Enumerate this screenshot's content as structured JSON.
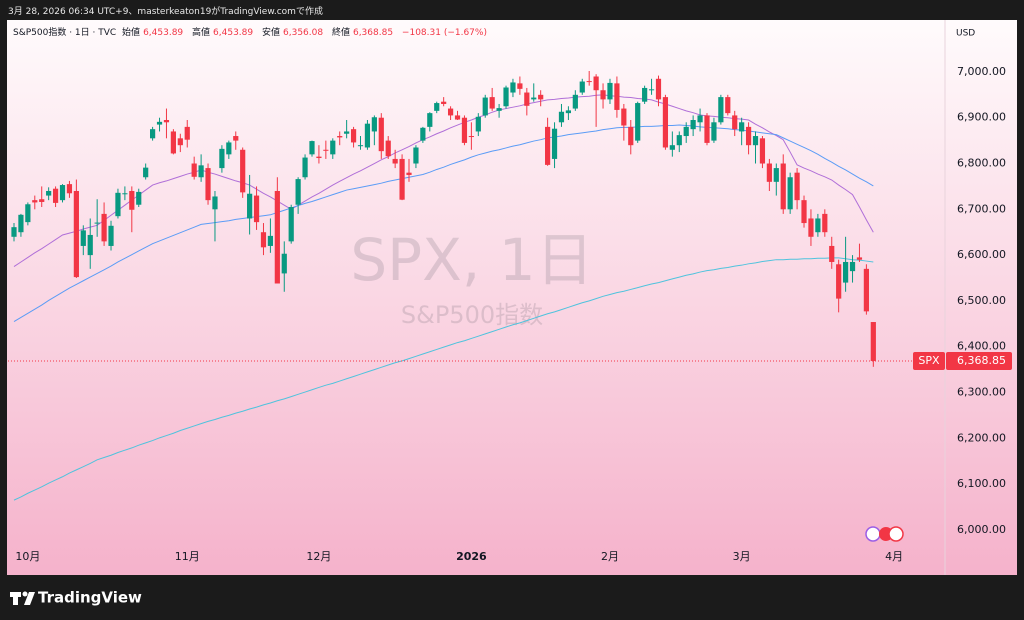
{
  "header": {
    "created": "3月 28, 2026 06:34 UTC+9、masterkeaton19がTradingView.comで作成"
  },
  "footer": {
    "brand": "TradingView"
  },
  "chart_data": {
    "type": "candlestick",
    "legend": {
      "symbol": "S&P500指数 · 1日 · TVC",
      "fields": [
        {
          "name": "始値",
          "text": "6,453.89"
        },
        {
          "name": "高値",
          "text": "6,453.89"
        },
        {
          "name": "安値",
          "text": "6,356.08"
        },
        {
          "name": "終値",
          "text": "6,368.85"
        }
      ],
      "change": "−108.31 (−1.67%)"
    },
    "watermark": "SPX, 1日",
    "watermark_sub": "S&P500指数",
    "currency": "USD",
    "last_price": {
      "symbol": "SPX",
      "value": 6368.85,
      "label": "6,368.85"
    },
    "up_color": "#089981",
    "down_color": "#f23645",
    "grid": false,
    "ylim": [
      5967,
      7109
    ],
    "yticks": [
      {
        "value": 6000,
        "label": "6,000.00"
      },
      {
        "value": 6100,
        "label": "6,100.00"
      },
      {
        "value": 6200,
        "label": "6,200.00"
      },
      {
        "value": 6300,
        "label": "6,300.00"
      },
      {
        "value": 6400,
        "label": "6,400.00"
      },
      {
        "value": 6500,
        "label": "6,500.00"
      },
      {
        "value": 6600,
        "label": "6,600.00"
      },
      {
        "value": 6700,
        "label": "6,700.00"
      },
      {
        "value": 6800,
        "label": "6,800.00"
      },
      {
        "value": 6900,
        "label": "6,900.00"
      },
      {
        "value": 7000,
        "label": "7,000.00"
      }
    ],
    "categories": [
      null,
      null,
      "10月",
      null,
      null,
      null,
      null,
      null,
      null,
      null,
      null,
      null,
      null,
      null,
      null,
      null,
      null,
      null,
      null,
      null,
      null,
      null,
      null,
      null,
      null,
      "11月",
      null,
      null,
      null,
      null,
      null,
      null,
      null,
      null,
      null,
      null,
      null,
      null,
      null,
      null,
      null,
      null,
      null,
      null,
      "12月",
      null,
      null,
      null,
      null,
      null,
      null,
      null,
      null,
      null,
      null,
      null,
      null,
      null,
      null,
      null,
      null,
      null,
      null,
      null,
      null,
      null,
      "2026",
      null,
      null,
      null,
      null,
      null,
      null,
      null,
      null,
      null,
      null,
      null,
      null,
      null,
      null,
      null,
      null,
      null,
      null,
      null,
      "2月",
      null,
      null,
      null,
      null,
      null,
      null,
      null,
      null,
      null,
      null,
      null,
      null,
      null,
      null,
      null,
      null,
      null,
      null,
      "3月",
      null,
      null,
      null,
      null,
      null,
      null,
      null,
      null,
      null,
      null,
      null,
      null,
      null,
      null,
      null,
      null,
      null,
      null,
      null,
      null,
      null,
      "4月"
    ],
    "open": [
      6640,
      6650,
      6672,
      6720,
      6722,
      6730,
      6745,
      6720,
      6755,
      6740,
      6620,
      6600,
      6670,
      6690,
      6620,
      6685,
      6735,
      6740,
      6710,
      6770,
      6855,
      6885,
      6895,
      6870,
      6855,
      6880,
      6800,
      6770,
      6790,
      6700,
      6790,
      6820,
      6860,
      6830,
      6680,
      6730,
      6650,
      6620,
      6740,
      6560,
      6630,
      6710,
      6770,
      6820,
      6815,
      6830,
      6820,
      6860,
      6865,
      6875,
      6840,
      6835,
      6870,
      6900,
      6850,
      6810,
      6810,
      6780,
      6800,
      6850,
      6880,
      6915,
      6935,
      6920,
      6905,
      6900,
      6860,
      6870,
      6905,
      6945,
      6915,
      6925,
      6955,
      6975,
      6955,
      6940,
      6950,
      6880,
      6810,
      6890,
      6910,
      6920,
      6955,
      6980,
      6990,
      6960,
      6940,
      6975,
      6920,
      6880,
      6850,
      6935,
      6960,
      6985,
      6945,
      6830,
      6840,
      6860,
      6875,
      6890,
      6905,
      6850,
      6890,
      6945,
      6905,
      6870,
      6880,
      6840,
      6855,
      6800,
      6760,
      6800,
      6700,
      6780,
      6720,
      6680,
      6650,
      6690,
      6620,
      6580,
      6540,
      6565,
      6595,
      6570,
      6453.89,
      null,
      null,
      null
    ],
    "high": [
      6670,
      6690,
      6715,
      6730,
      6750,
      6748,
      6750,
      6755,
      6762,
      6765,
      6665,
      6680,
      6722,
      6715,
      6675,
      6745,
      6750,
      6750,
      6745,
      6800,
      6880,
      6900,
      6920,
      6875,
      6865,
      6895,
      6815,
      6820,
      6800,
      6740,
      6840,
      6850,
      6870,
      6835,
      6775,
      6750,
      6670,
      6680,
      6770,
      6630,
      6710,
      6770,
      6820,
      6850,
      6840,
      6850,
      6855,
      6870,
      6895,
      6880,
      6860,
      6895,
      6905,
      6910,
      6860,
      6830,
      6820,
      6810,
      6840,
      6880,
      6912,
      6935,
      6945,
      6925,
      6915,
      6905,
      6890,
      6910,
      6950,
      6965,
      6930,
      6970,
      6985,
      6990,
      6965,
      6975,
      6960,
      6900,
      6890,
      6930,
      6925,
      6960,
      6985,
      7002,
      6995,
      6975,
      6985,
      6990,
      6930,
      6895,
      6935,
      6970,
      6985,
      6992,
      6950,
      6870,
      6870,
      6890,
      6905,
      6920,
      6910,
      6900,
      6950,
      6950,
      6915,
      6900,
      6890,
      6870,
      6860,
      6810,
      6800,
      6820,
      6780,
      6790,
      6730,
      6700,
      6690,
      6700,
      6640,
      6590,
      6640,
      6600,
      6625,
      6580,
      6453.89,
      null,
      null,
      null
    ],
    "low": [
      6630,
      6640,
      6665,
      6700,
      6705,
      6720,
      6705,
      6715,
      6725,
      6550,
      6600,
      6570,
      6640,
      6620,
      6610,
      6680,
      6720,
      6650,
      6705,
      6765,
      6850,
      6870,
      6855,
      6820,
      6825,
      6835,
      6765,
      6760,
      6710,
      6630,
      6780,
      6810,
      6830,
      6725,
      6645,
      6655,
      6600,
      6605,
      6538,
      6520,
      6625,
      6690,
      6765,
      6815,
      6800,
      6810,
      6810,
      6840,
      6855,
      6835,
      6830,
      6830,
      6840,
      6810,
      6810,
      6790,
      6720,
      6760,
      6790,
      6845,
      6870,
      6910,
      6925,
      6895,
      6895,
      6840,
      6830,
      6860,
      6900,
      6915,
      6900,
      6920,
      6945,
      6950,
      6905,
      6935,
      6925,
      6795,
      6790,
      6880,
      6895,
      6915,
      6950,
      6970,
      6880,
      6920,
      6930,
      6900,
      6850,
      6820,
      6845,
      6930,
      6950,
      6925,
      6830,
      6815,
      6825,
      6845,
      6860,
      6870,
      6840,
      6845,
      6885,
      6905,
      6860,
      6840,
      6820,
      6800,
      6790,
      6740,
      6730,
      6690,
      6690,
      6700,
      6660,
      6620,
      6640,
      6640,
      6570,
      6475,
      6520,
      6540,
      6585,
      6470,
      6356.08,
      null,
      null,
      null
    ],
    "close": [
      6661,
      6688,
      6711,
      6715,
      6716,
      6740,
      6714,
      6753,
      6735,
      6552,
      6654,
      6644,
      6671,
      6630,
      6664,
      6736,
      6735,
      6699,
      6738,
      6791,
      6875,
      6891,
      6890,
      6822,
      6840,
      6852,
      6771,
      6796,
      6720,
      6728,
      6832,
      6846,
      6850,
      6737,
      6734,
      6672,
      6617,
      6642,
      6538,
      6603,
      6705,
      6766,
      6813,
      6849,
      6812,
      6829,
      6850,
      6857,
      6870,
      6846,
      6840,
      6887,
      6901,
      6827,
      6816,
      6800,
      6721,
      6775,
      6835,
      6878,
      6910,
      6932,
      6930,
      6905,
      6896,
      6845,
      6858,
      6902,
      6944,
      6920,
      6921,
      6966,
      6977,
      6963,
      6926,
      6944,
      6940,
      6797,
      6876,
      6913,
      6916,
      6950,
      6979,
      6978,
      6960,
      6940,
      6976,
      6917,
      6883,
      6840,
      6932,
      6965,
      6962,
      6940,
      6835,
      6840,
      6862,
      6880,
      6895,
      6905,
      6845,
      6890,
      6945,
      6910,
      6875,
      6890,
      6840,
      6860,
      6800,
      6760,
      6790,
      6700,
      6770,
      6720,
      6670,
      6640,
      6680,
      6650,
      6585,
      6505,
      6585,
      6585,
      6590,
      6477.16,
      6368.85,
      null,
      null,
      null
    ],
    "lines": [
      {
        "color": "#b06fd8",
        "values": [
          6575,
          6585,
          6595,
          6605,
          6614,
          6624,
          6634,
          6644,
          6648,
          6652,
          6657,
          6661,
          6665,
          6676,
          6687,
          6698,
          6709,
          6720,
          6731,
          6742,
          6753,
          6758,
          6762,
          6767,
          6772,
          6777,
          6781,
          6786,
          6781,
          6777,
          6772,
          6767,
          6762,
          6758,
          6753,
          6744,
          6735,
          6727,
          6718,
          6709,
          6700,
          6709,
          6718,
          6727,
          6735,
          6744,
          6753,
          6761,
          6769,
          6777,
          6784,
          6792,
          6800,
          6808,
          6815,
          6823,
          6830,
          6837,
          6845,
          6852,
          6858,
          6865,
          6871,
          6878,
          6884,
          6890,
          6895,
          6901,
          6906,
          6912,
          6917,
          6920,
          6923,
          6926,
          6930,
          6933,
          6936,
          6939,
          6940,
          6942,
          6943,
          6945,
          6946,
          6947,
          6949,
          6950,
          6948,
          6947,
          6945,
          6944,
          6942,
          6941,
          6939,
          6934,
          6930,
          6925,
          6920,
          6915,
          6911,
          6906,
          6904,
          6903,
          6901,
          6900,
          6898,
          6897,
          6895,
          6886,
          6878,
          6869,
          6861,
          6852,
          6825,
          6797,
          6790,
          6784,
          6777,
          6771,
          6764,
          6753,
          6743,
          6732,
          6705,
          6677,
          6650,
          null,
          null,
          null
        ]
      },
      {
        "color": "#5b9cf6",
        "values": [
          6455,
          6464,
          6473,
          6482,
          6491,
          6501,
          6510,
          6519,
          6528,
          6536,
          6544,
          6552,
          6560,
          6568,
          6576,
          6585,
          6593,
          6601,
          6609,
          6617,
          6625,
          6631,
          6637,
          6643,
          6649,
          6655,
          6661,
          6667,
          6669,
          6671,
          6673,
          6675,
          6678,
          6680,
          6682,
          6684,
          6686,
          6688,
          6693,
          6698,
          6703,
          6708,
          6713,
          6717,
          6722,
          6727,
          6732,
          6737,
          6742,
          6745,
          6748,
          6751,
          6754,
          6757,
          6761,
          6764,
          6767,
          6770,
          6773,
          6776,
          6781,
          6787,
          6792,
          6798,
          6803,
          6808,
          6814,
          6819,
          6823,
          6827,
          6830,
          6834,
          6838,
          6841,
          6845,
          6849,
          6852,
          6856,
          6858,
          6860,
          6863,
          6865,
          6867,
          6869,
          6871,
          6874,
          6876,
          6878,
          6879,
          6879,
          6880,
          6881,
          6881,
          6882,
          6883,
          6883,
          6884,
          6883,
          6882,
          6880,
          6879,
          6878,
          6877,
          6876,
          6874,
          6873,
          6871,
          6869,
          6867,
          6865,
          6863,
          6856,
          6849,
          6842,
          6835,
          6828,
          6820,
          6811,
          6803,
          6794,
          6786,
          6777,
          6768,
          6760,
          6751,
          null,
          null,
          null
        ]
      },
      {
        "color": "#4fc3dd",
        "values": [
          6065,
          6072,
          6080,
          6087,
          6094,
          6102,
          6109,
          6116,
          6124,
          6131,
          6138,
          6145,
          6153,
          6158,
          6163,
          6169,
          6174,
          6179,
          6185,
          6190,
          6195,
          6201,
          6206,
          6211,
          6217,
          6222,
          6227,
          6232,
          6237,
          6241,
          6246,
          6250,
          6255,
          6259,
          6264,
          6268,
          6273,
          6277,
          6282,
          6286,
          6291,
          6296,
          6301,
          6306,
          6311,
          6316,
          6320,
          6325,
          6330,
          6335,
          6340,
          6345,
          6350,
          6355,
          6360,
          6365,
          6369,
          6374,
          6379,
          6384,
          6389,
          6394,
          6399,
          6404,
          6409,
          6413,
          6418,
          6423,
          6428,
          6433,
          6438,
          6443,
          6448,
          6452,
          6457,
          6462,
          6467,
          6472,
          6476,
          6481,
          6486,
          6491,
          6496,
          6500,
          6505,
          6510,
          6514,
          6518,
          6521,
          6525,
          6529,
          6533,
          6537,
          6540,
          6544,
          6548,
          6552,
          6556,
          6559,
          6563,
          6566,
          6568,
          6571,
          6573,
          6576,
          6578,
          6581,
          6583,
          6586,
          6588,
          6590,
          6590,
          6591,
          6591,
          6592,
          6592,
          6593,
          6593,
          6594,
          6594,
          6592,
          6590,
          6589,
          6587,
          6585,
          null,
          null,
          null
        ]
      }
    ]
  }
}
